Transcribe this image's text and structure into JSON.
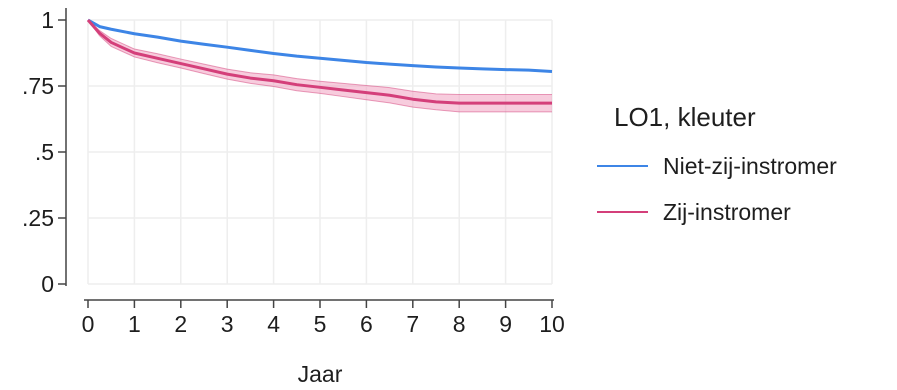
{
  "chart_data": {
    "type": "line",
    "title": "",
    "xlabel": "Jaar",
    "ylabel": "",
    "xlim": [
      0,
      10
    ],
    "ylim": [
      0,
      1
    ],
    "x_ticks": [
      0,
      1,
      2,
      3,
      4,
      5,
      6,
      7,
      8,
      9,
      10
    ],
    "x_tick_labels": [
      "0",
      "1",
      "2",
      "3",
      "4",
      "5",
      "6",
      "7",
      "8",
      "9",
      "10"
    ],
    "y_ticks": [
      0,
      0.25,
      0.5,
      0.75,
      1
    ],
    "y_tick_labels": [
      "0",
      ".25",
      ".5",
      ".75",
      "1"
    ],
    "grid": true,
    "legend": {
      "title": "LO1, kleuter",
      "placement": "right"
    },
    "series": [
      {
        "name": "Niet-zij-instromer",
        "color": "#3d85e6",
        "x": [
          0,
          0.25,
          0.5,
          1,
          1.5,
          2,
          2.5,
          3,
          3.5,
          4,
          4.5,
          5,
          5.5,
          6,
          6.5,
          7,
          7.5,
          8,
          8.5,
          9,
          9.5,
          10
        ],
        "values": [
          1.0,
          0.975,
          0.965,
          0.948,
          0.935,
          0.92,
          0.908,
          0.897,
          0.885,
          0.873,
          0.863,
          0.855,
          0.847,
          0.839,
          0.833,
          0.827,
          0.822,
          0.818,
          0.815,
          0.812,
          0.81,
          0.805
        ]
      },
      {
        "name": "Zij-instromer",
        "color": "#d43f7a",
        "band_color": "#f1a3c1",
        "x": [
          0,
          0.25,
          0.5,
          1,
          1.5,
          2,
          2.5,
          3,
          3.5,
          4,
          4.5,
          5,
          5.5,
          6,
          6.5,
          7,
          7.5,
          8,
          8.5,
          9,
          9.5,
          10
        ],
        "values": [
          1.0,
          0.95,
          0.915,
          0.875,
          0.855,
          0.835,
          0.815,
          0.795,
          0.78,
          0.77,
          0.755,
          0.745,
          0.735,
          0.725,
          0.715,
          0.7,
          0.69,
          0.685,
          0.685,
          0.685,
          0.685,
          0.685
        ],
        "lower": [
          1.0,
          0.94,
          0.9,
          0.86,
          0.838,
          0.818,
          0.797,
          0.776,
          0.76,
          0.748,
          0.732,
          0.722,
          0.71,
          0.698,
          0.686,
          0.67,
          0.66,
          0.652,
          0.652,
          0.652,
          0.652,
          0.652
        ],
        "upper": [
          1.0,
          0.96,
          0.93,
          0.89,
          0.872,
          0.852,
          0.833,
          0.814,
          0.8,
          0.792,
          0.778,
          0.768,
          0.76,
          0.752,
          0.744,
          0.73,
          0.72,
          0.718,
          0.718,
          0.718,
          0.718,
          0.718
        ]
      }
    ]
  }
}
